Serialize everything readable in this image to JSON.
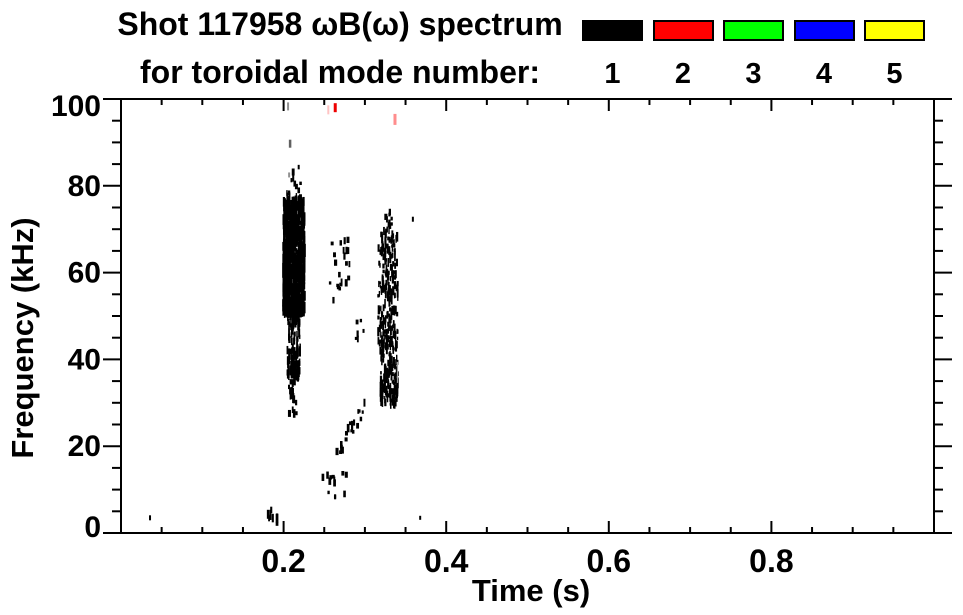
{
  "chart_data": {
    "type": "scatter",
    "title_line1": "Shot 117958 ωB(ω) spectrum",
    "title_line2": "for toroidal mode number:",
    "xlabel": "Time (s)",
    "ylabel": "Frequency (kHz)",
    "xlim": [
      0,
      1
    ],
    "ylim": [
      0,
      100
    ],
    "x_major_ticks": [
      {
        "v": 0.2,
        "label": "0.2"
      },
      {
        "v": 0.4,
        "label": "0.4"
      },
      {
        "v": 0.6,
        "label": "0.6"
      },
      {
        "v": 0.8,
        "label": "0.8"
      }
    ],
    "x_minor_step": 0.05,
    "y_major_ticks": [
      {
        "v": 0,
        "label": "0"
      },
      {
        "v": 20,
        "label": "20"
      },
      {
        "v": 40,
        "label": "40"
      },
      {
        "v": 60,
        "label": "60"
      },
      {
        "v": 80,
        "label": "80"
      },
      {
        "v": 100,
        "label": "100"
      }
    ],
    "y_minor_step": 5,
    "grid": false,
    "legend_position": "top-right",
    "legend_title": "toroidal mode number",
    "point_color_default": "#000000",
    "clusters": [
      {
        "name": "burst1-top",
        "seed": 11,
        "n": 12,
        "t": [
          0.203,
          0.224
        ],
        "f": [
          76,
          84.5
        ],
        "h": [
          3,
          8
        ],
        "wide": true
      },
      {
        "name": "burst1-core",
        "seed": 12,
        "n": 650,
        "t": [
          0.1995,
          0.226
        ],
        "f": [
          51,
          77
        ],
        "h": [
          7,
          16
        ]
      },
      {
        "name": "burst1-halo",
        "seed": 15,
        "n": 60,
        "t": [
          0.1985,
          0.227
        ],
        "f": [
          48,
          79
        ],
        "h": [
          3,
          8
        ],
        "cw": true
      },
      {
        "name": "burst1-mid",
        "seed": 13,
        "n": 150,
        "t": [
          0.2045,
          0.2205
        ],
        "f": [
          36,
          52
        ],
        "h": [
          4,
          12
        ]
      },
      {
        "name": "burst1-tail",
        "seed": 14,
        "n": 26,
        "t": [
          0.206,
          0.219
        ],
        "f": [
          27.5,
          37
        ],
        "h": [
          3,
          9
        ],
        "wide": true
      },
      {
        "name": "burst2-top",
        "seed": 21,
        "n": 9,
        "t": [
          0.3245,
          0.3375
        ],
        "f": [
          69.5,
          74.5
        ],
        "h": [
          3,
          7
        ],
        "wide": true
      },
      {
        "name": "burst2-core",
        "seed": 22,
        "n": 190,
        "t": [
          0.3165,
          0.3405
        ],
        "f": [
          43,
          70
        ],
        "h": [
          3,
          10
        ]
      },
      {
        "name": "burst2-halo",
        "seed": 24,
        "n": 40,
        "t": [
          0.3155,
          0.3415
        ],
        "f": [
          41,
          73
        ],
        "h": [
          3,
          7
        ],
        "cw": true
      },
      {
        "name": "burst2-low",
        "seed": 23,
        "n": 150,
        "t": [
          0.319,
          0.3405
        ],
        "f": [
          29.5,
          44
        ],
        "h": [
          3,
          11
        ]
      },
      {
        "name": "mid-upper",
        "seed": 31,
        "n": 22,
        "t": [
          0.257,
          0.282
        ],
        "f": [
          50.5,
          68
        ],
        "h": [
          3,
          8
        ],
        "wide": true
      },
      {
        "name": "mid-upper2",
        "seed": 34,
        "n": 6,
        "t": [
          0.289,
          0.299
        ],
        "f": [
          44,
          50
        ],
        "h": [
          3,
          7
        ],
        "wide": true
      },
      {
        "name": "mid-diag",
        "seed": 32,
        "n": 20,
        "t": [
          0.263,
          0.3
        ],
        "f": [
          17,
          32
        ],
        "h": [
          3,
          9
        ],
        "diag": true,
        "wide": true
      },
      {
        "name": "low-band",
        "seed": 33,
        "n": 13,
        "t": [
          0.2385,
          0.282
        ],
        "f": [
          7.5,
          14
        ],
        "h": [
          3,
          8
        ],
        "wide": true
      },
      {
        "name": "spot-t019",
        "seed": 41,
        "n": 9,
        "t": [
          0.18,
          0.194
        ],
        "f": [
          1.4,
          5.5
        ],
        "h": [
          4,
          10
        ],
        "wide": true
      }
    ],
    "marks": [
      {
        "t": 0.0357,
        "f": 3.5,
        "h": 5,
        "w": 2
      },
      {
        "t": 0.368,
        "f": 3.5,
        "h": 4,
        "w": 2
      },
      {
        "t": 0.359,
        "f": 72.3,
        "h": 5,
        "w": 2
      },
      {
        "t": 0.2635,
        "f": 98.0,
        "h": 9,
        "w": 3,
        "color": "#ee0000"
      },
      {
        "t": 0.255,
        "f": 97.5,
        "h": 9,
        "w": 2,
        "color": "#ffc4c4"
      },
      {
        "t": 0.337,
        "f": 95.3,
        "h": 11,
        "w": 3,
        "color": "#ff8d8d"
      },
      {
        "t": 0.2055,
        "f": 98.3,
        "h": 8,
        "w": 2,
        "color": "#909090"
      },
      {
        "t": 0.208,
        "f": 89.7,
        "h": 8,
        "w": 2.5,
        "color": "#606060"
      },
      {
        "t": 0.2068,
        "f": 82.5,
        "h": 5,
        "w": 2,
        "color": "#909090"
      },
      {
        "t": 0.3401,
        "f": 37.0,
        "h": 21,
        "w": 1.2,
        "color": "#a0a0a0"
      }
    ]
  },
  "legend": {
    "items": [
      {
        "label": "1",
        "color": "#000000"
      },
      {
        "label": "2",
        "color": "#ff0000"
      },
      {
        "label": "3",
        "color": "#00ff00"
      },
      {
        "label": "4",
        "color": "#0000ff"
      },
      {
        "label": "5",
        "color": "#ffff00"
      }
    ]
  }
}
